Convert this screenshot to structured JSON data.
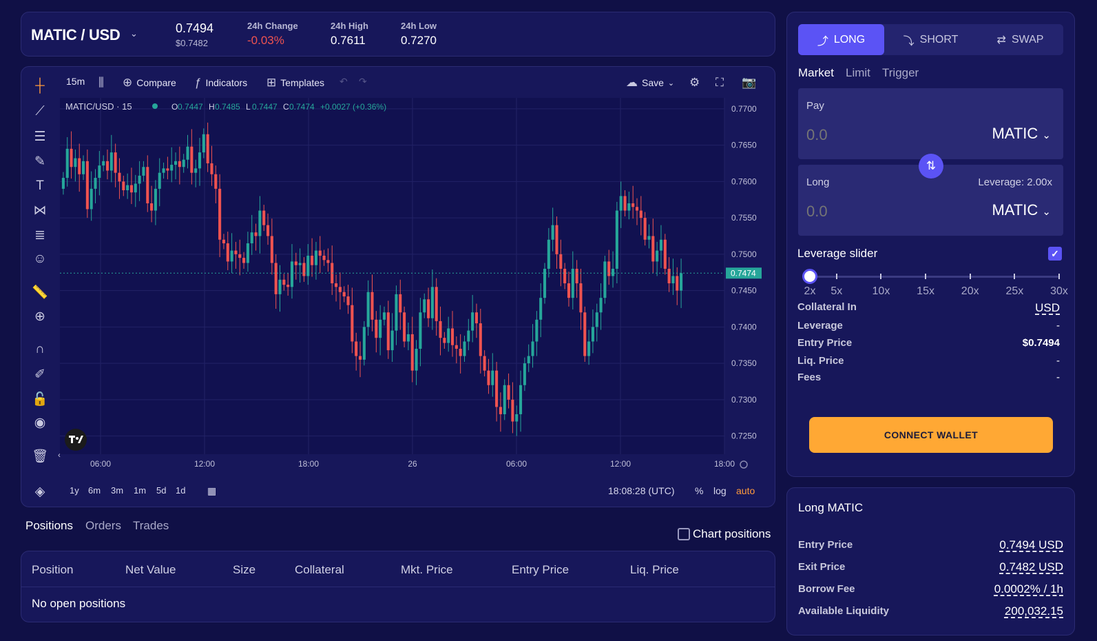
{
  "header": {
    "pair": "MATIC / USD",
    "price": "0.7494",
    "price_usd": "$0.7482",
    "change_label": "24h Change",
    "change_value": "-0.03%",
    "high_label": "24h High",
    "high_value": "0.7611",
    "low_label": "24h Low",
    "low_value": "0.7270"
  },
  "chart_toolbar": {
    "interval": "15m",
    "compare": "Compare",
    "indicators": "Indicators",
    "templates": "Templates",
    "save": "Save"
  },
  "chart_data": {
    "type": "candlestick",
    "legend": "MATIC/USD · 15",
    "ohlc": {
      "o": "0.7447",
      "h": "0.7485",
      "l": "0.7447",
      "c": "0.7474",
      "change": "+0.0027 (+0.36%)"
    },
    "last_price_tag": "0.7474",
    "y_ticks": [
      "0.7700",
      "0.7650",
      "0.7600",
      "0.7550",
      "0.7500",
      "0.7450",
      "0.7400",
      "0.7350",
      "0.7300",
      "0.7250"
    ],
    "x_ticks": [
      "06:00",
      "12:00",
      "18:00",
      "26",
      "06:00",
      "12:00",
      "18:00"
    ],
    "ylim": [
      0.7225,
      0.7715
    ],
    "last_close": 0.7474,
    "closes": [
      0.7605,
      0.7645,
      0.762,
      0.7632,
      0.761,
      0.7628,
      0.7562,
      0.759,
      0.7605,
      0.7622,
      0.7628,
      0.7615,
      0.764,
      0.7612,
      0.76,
      0.7588,
      0.7595,
      0.7585,
      0.7597,
      0.7608,
      0.762,
      0.757,
      0.756,
      0.759,
      0.7612,
      0.7618,
      0.7615,
      0.7623,
      0.7628,
      0.762,
      0.763,
      0.7648,
      0.7612,
      0.7618,
      0.764,
      0.7665,
      0.7625,
      0.761,
      0.759,
      0.752,
      0.7515,
      0.749,
      0.7505,
      0.75,
      0.7495,
      0.7488,
      0.7515,
      0.753,
      0.7525,
      0.756,
      0.754,
      0.7525,
      0.7488,
      0.7445,
      0.7465,
      0.7458,
      0.7455,
      0.749,
      0.7485,
      0.7488,
      0.747,
      0.7498,
      0.7485,
      0.7505,
      0.7498,
      0.7492,
      0.7488,
      0.746,
      0.7455,
      0.7448,
      0.7442,
      0.743,
      0.738,
      0.736,
      0.7355,
      0.74,
      0.7448,
      0.741,
      0.7385,
      0.741,
      0.742,
      0.7368,
      0.7395,
      0.7445,
      0.742,
      0.738,
      0.739,
      0.734,
      0.737,
      0.742,
      0.7438,
      0.7412,
      0.7455,
      0.7408,
      0.7385,
      0.7378,
      0.7398,
      0.7375,
      0.737,
      0.736,
      0.738,
      0.7395,
      0.742,
      0.7405,
      0.736,
      0.734,
      0.732,
      0.734,
      0.729,
      0.728,
      0.732,
      0.73,
      0.727,
      0.728,
      0.732,
      0.735,
      0.736,
      0.738,
      0.741,
      0.744,
      0.748,
      0.752,
      0.754,
      0.75,
      0.748,
      0.746,
      0.744,
      0.748,
      0.746,
      0.742,
      0.736,
      0.738,
      0.74,
      0.742,
      0.744,
      0.749,
      0.747,
      0.748,
      0.756,
      0.758,
      0.756,
      0.757,
      0.7565,
      0.756,
      0.755,
      0.752,
      0.7525,
      0.749,
      0.7505,
      0.752,
      0.748,
      0.746,
      0.747,
      0.745,
      0.7474
    ]
  },
  "bottom_bar": {
    "ranges": [
      "1y",
      "6m",
      "3m",
      "1m",
      "5d",
      "1d"
    ],
    "time": "18:08:28 (UTC)",
    "percent": "%",
    "log": "log",
    "auto": "auto"
  },
  "positions": {
    "tabs": [
      "Positions",
      "Orders",
      "Trades"
    ],
    "chart_positions": "Chart positions",
    "columns": [
      "Position",
      "Net Value",
      "Size",
      "Collateral",
      "Mkt. Price",
      "Entry Price",
      "Liq. Price"
    ],
    "empty": "No open positions"
  },
  "order": {
    "tabs": [
      "LONG",
      "SHORT",
      "SWAP"
    ],
    "types": [
      "Market",
      "Limit",
      "Trigger"
    ],
    "pay_label": "Pay",
    "pay_placeholder": "0.0",
    "pay_token": "MATIC",
    "long_label": "Long",
    "leverage_text": "Leverage: 2.00x",
    "long_placeholder": "0.0",
    "long_token": "MATIC",
    "leverage_slider_label": "Leverage slider",
    "leverage_value": 2,
    "slider_marks": [
      "2x",
      "5x",
      "10x",
      "15x",
      "20x",
      "25x",
      "30x"
    ],
    "details": [
      {
        "k": "Collateral In",
        "v": "USD"
      },
      {
        "k": "Leverage",
        "v": "-"
      },
      {
        "k": "Entry Price",
        "v": "$0.7494"
      },
      {
        "k": "Liq. Price",
        "v": "-"
      },
      {
        "k": "Fees",
        "v": "-"
      }
    ],
    "connect": "CONNECT WALLET"
  },
  "info": {
    "title": "Long MATIC",
    "rows": [
      {
        "k": "Entry Price",
        "v": "0.7494 USD"
      },
      {
        "k": "Exit Price",
        "v": "0.7482 USD"
      },
      {
        "k": "Borrow Fee",
        "v": "0.0002% / 1h"
      },
      {
        "k": "Available Liquidity",
        "v": "200,032.15"
      }
    ]
  },
  "colors": {
    "accent": "#5b53f5",
    "up": "#26a69a",
    "down": "#ef5350",
    "button": "#ffa834",
    "negative": "#ef5350"
  }
}
